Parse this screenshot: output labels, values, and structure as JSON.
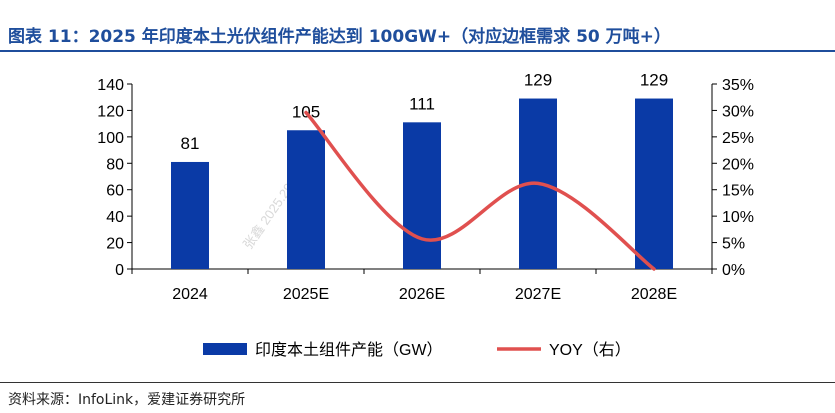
{
  "header": {
    "title": "图表 11：2025 年印度本土光伏组件产能达到 100GW+（对应边框需求 50 万吨+）"
  },
  "footer": {
    "source": "资料来源：InfoLink，爱建证券研究所"
  },
  "watermark": "张鑫 2025.29. 15:18",
  "chart_data": {
    "type": "bar",
    "categories": [
      "2024",
      "2025E",
      "2026E",
      "2027E",
      "2028E"
    ],
    "series": [
      {
        "name": "印度本土组件产能（GW）",
        "type": "bar",
        "axis": "left",
        "values": [
          81,
          105,
          111,
          129,
          129
        ],
        "color": "#0a3aa6"
      },
      {
        "name": "YOY（右）",
        "type": "line",
        "axis": "right",
        "smooth": true,
        "values": [
          null,
          0.296,
          0.057,
          0.162,
          0.0
        ],
        "color": "#e0504f"
      }
    ],
    "y_left": {
      "min": 0,
      "max": 140,
      "ticks": [
        0,
        20,
        40,
        60,
        80,
        100,
        120,
        140
      ]
    },
    "y_right": {
      "min": 0,
      "max": 0.35,
      "ticks": [
        "0%",
        "5%",
        "10%",
        "15%",
        "20%",
        "25%",
        "30%",
        "35%"
      ]
    },
    "data_labels": [
      "81",
      "105",
      "111",
      "129",
      "129"
    ],
    "legend": {
      "position": "bottom",
      "entries": [
        "印度本土组件产能（GW）",
        "YOY（右）"
      ]
    }
  }
}
